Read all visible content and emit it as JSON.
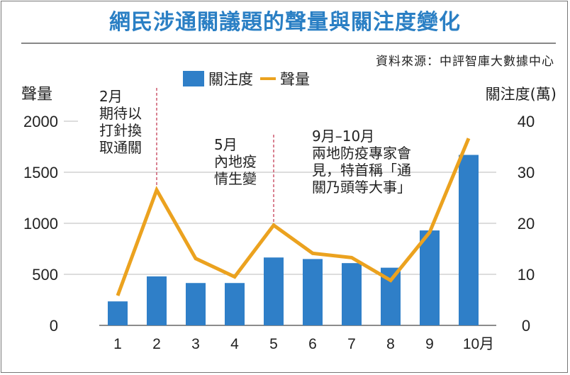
{
  "title": "網民涉通關議題的聲量與關注度變化",
  "source": "資料來源：中評智庫大數據中心",
  "legend": {
    "bar": "關注度",
    "line": "聲量"
  },
  "annotations": [
    {
      "lines": [
        "2月",
        "期待以",
        "打針換",
        "取通關"
      ]
    },
    {
      "lines": [
        "5月",
        "內地疫",
        "情生變"
      ]
    },
    {
      "lines": [
        "9月–10月",
        "兩地防疫專家會",
        "見，特首稱「通",
        "關乃頭等大事」"
      ]
    }
  ],
  "colors": {
    "title": "#2a7fc4",
    "bar": "#2f7fc8",
    "line": "#eba21f",
    "marker": "#c0304a"
  },
  "chart_data": {
    "type": "bar+line",
    "title": "網民涉通關議題的聲量與關注度變化",
    "categories": [
      "1",
      "2",
      "3",
      "4",
      "5",
      "6",
      "7",
      "8",
      "9",
      "10月"
    ],
    "series": [
      {
        "name": "關注度",
        "type": "bar",
        "axis": "right",
        "values": [
          4.7,
          9.6,
          8.3,
          8.3,
          13.3,
          13.0,
          12.2,
          11.3,
          18.6,
          33.4
        ]
      },
      {
        "name": "聲量",
        "type": "line",
        "axis": "left",
        "values": [
          292,
          1326,
          655,
          476,
          981,
          706,
          664,
          441,
          912,
          1832
        ]
      }
    ],
    "ylabel_left": "聲量",
    "ylabel_right": "關注度(萬)",
    "ylim_left": [
      0,
      2000
    ],
    "yticks_left": [
      "0",
      "500",
      "1000",
      "1500",
      "2000"
    ],
    "ylim_right": [
      0,
      40
    ],
    "yticks_right": [
      "0",
      "10",
      "20",
      "30",
      "40"
    ],
    "event_markers": [
      "2",
      "5"
    ],
    "grid": true,
    "legend_position": "top"
  }
}
